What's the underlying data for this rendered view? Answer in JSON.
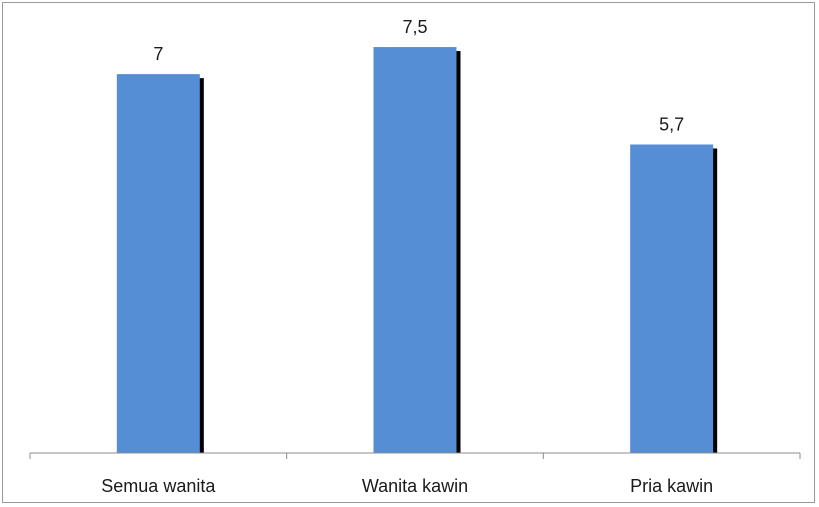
{
  "chart_data": {
    "type": "bar",
    "categories": [
      "Semua wanita",
      "Wanita kawin",
      "Pria kawin"
    ],
    "values": [
      7,
      7.5,
      5.7
    ],
    "value_labels": [
      "7",
      "7,5",
      "5,7"
    ],
    "title": "",
    "xlabel": "",
    "ylabel": "",
    "ylim": [
      0,
      8
    ],
    "grid": false,
    "legend": "none",
    "bar_color": "#558ed5",
    "shadow_color": "#000000"
  }
}
